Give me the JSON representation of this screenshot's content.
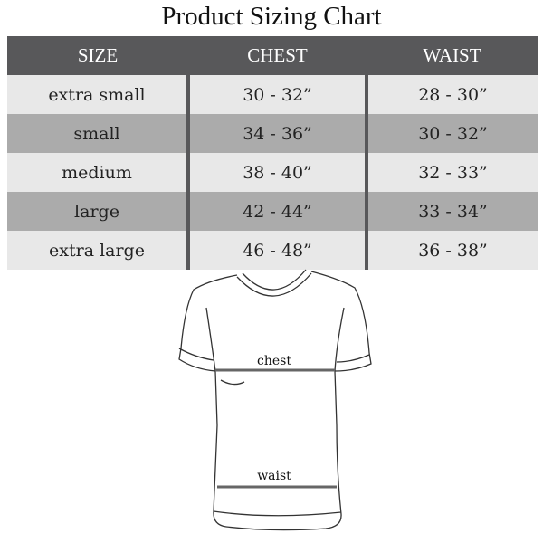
{
  "title": "Product Sizing Chart",
  "table": {
    "headers": [
      "SIZE",
      "CHEST",
      "WAIST"
    ],
    "rows": [
      [
        "extra small",
        "30 - 32”",
        "28 - 30”"
      ],
      [
        "small",
        "34 - 36”",
        "30 - 32”"
      ],
      [
        "medium",
        "38 - 40”",
        "32 - 33”"
      ],
      [
        "large",
        "42 - 44”",
        "33 - 34”"
      ],
      [
        "extra large",
        "46 - 48”",
        "36 - 38”"
      ]
    ]
  },
  "illustration": {
    "chest_label": "chest",
    "waist_label": "waist"
  },
  "colors": {
    "header": "#58585a",
    "row_light": "#e8e8e8",
    "row_dark": "#ababab"
  }
}
